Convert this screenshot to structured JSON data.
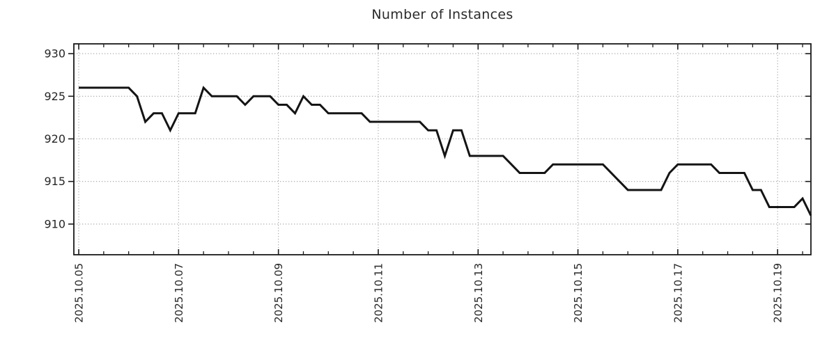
{
  "title": "Number of Instances",
  "colors": {
    "line": "#141414",
    "grid": "#a3a3a3",
    "axis": "#1a1a1a",
    "tick_text": "#262626",
    "title_text": "#2a2a2a",
    "background": "#ffffff"
  },
  "chart_data": {
    "type": "line",
    "title": "Number of Instances",
    "xlabel": "",
    "ylabel": "",
    "x_start": "2025-10-05 00:00",
    "x_end": "2025-10-19 16:00",
    "x_interval_hours": 4,
    "values": [
      926,
      926,
      926,
      926,
      926,
      926,
      926,
      925,
      922,
      923,
      923,
      921,
      923,
      923,
      923,
      926,
      925,
      925,
      925,
      925,
      924,
      925,
      925,
      925,
      924,
      924,
      923,
      925,
      924,
      924,
      923,
      923,
      923,
      923,
      923,
      922,
      922,
      922,
      922,
      922,
      922,
      922,
      921,
      921,
      918,
      921,
      921,
      918,
      918,
      918,
      918,
      918,
      917,
      916,
      916,
      916,
      916,
      917,
      917,
      917,
      917,
      917,
      917,
      917,
      916,
      915,
      914,
      914,
      914,
      914,
      914,
      916,
      917,
      917,
      917,
      917,
      917,
      916,
      916,
      916,
      916,
      914,
      914,
      912,
      912,
      912,
      912,
      913,
      911
    ],
    "x_tick_labels": [
      "2025.10.05",
      "2025.10.07",
      "2025.10.09",
      "2025.10.11",
      "2025.10.13",
      "2025.10.15",
      "2025.10.17",
      "2025.10.19"
    ],
    "x_tick_days": [
      0,
      2,
      4,
      6,
      8,
      10,
      12,
      14
    ],
    "x_minor_tick_interval_days": 0.5,
    "y_ticks": [
      910,
      915,
      920,
      925,
      930
    ],
    "ylim": [
      906.4,
      931.15
    ],
    "xlim_days": [
      -0.098,
      14.667
    ],
    "grid": true,
    "grid_style": "dotted",
    "legend": null,
    "line_width": 3
  }
}
